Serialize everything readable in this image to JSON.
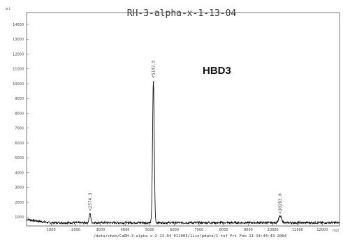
{
  "chart_data": {
    "type": "line",
    "title": "RH-3-alpha-x-1-13-04",
    "ylabel": "a.i.",
    "xlabel": "m/z",
    "xlim": [
      0,
      12700
    ],
    "ylim": [
      400,
      14800
    ],
    "x_ticks": [
      "1000",
      "2000",
      "3000",
      "4000",
      "5000",
      "6000",
      "7000",
      "8000",
      "9000",
      "10000",
      "11000",
      "12000"
    ],
    "y_ticks": [
      "1000",
      "2000",
      "3000",
      "4000",
      "5000",
      "6000",
      "7000",
      "8000",
      "9000",
      "10000",
      "11000",
      "12000",
      "13000",
      "14000"
    ],
    "baseline": 620,
    "peaks": [
      {
        "x": 2574.3,
        "y": 1250,
        "label": "<2574.3"
      },
      {
        "x": 5147.5,
        "y": 10200,
        "label": "<5147.5"
      },
      {
        "x": 10293.0,
        "y": 1050,
        "label": "<10293.0"
      }
    ],
    "annotation": "HBD3",
    "footer": "/data/chen/CaRH-3-alpha-x-2-13-04_012003/1Lin/pdata/1  tof  Fri Feb 13 14:44:43 2004",
    "grid": false,
    "legend": "none"
  }
}
